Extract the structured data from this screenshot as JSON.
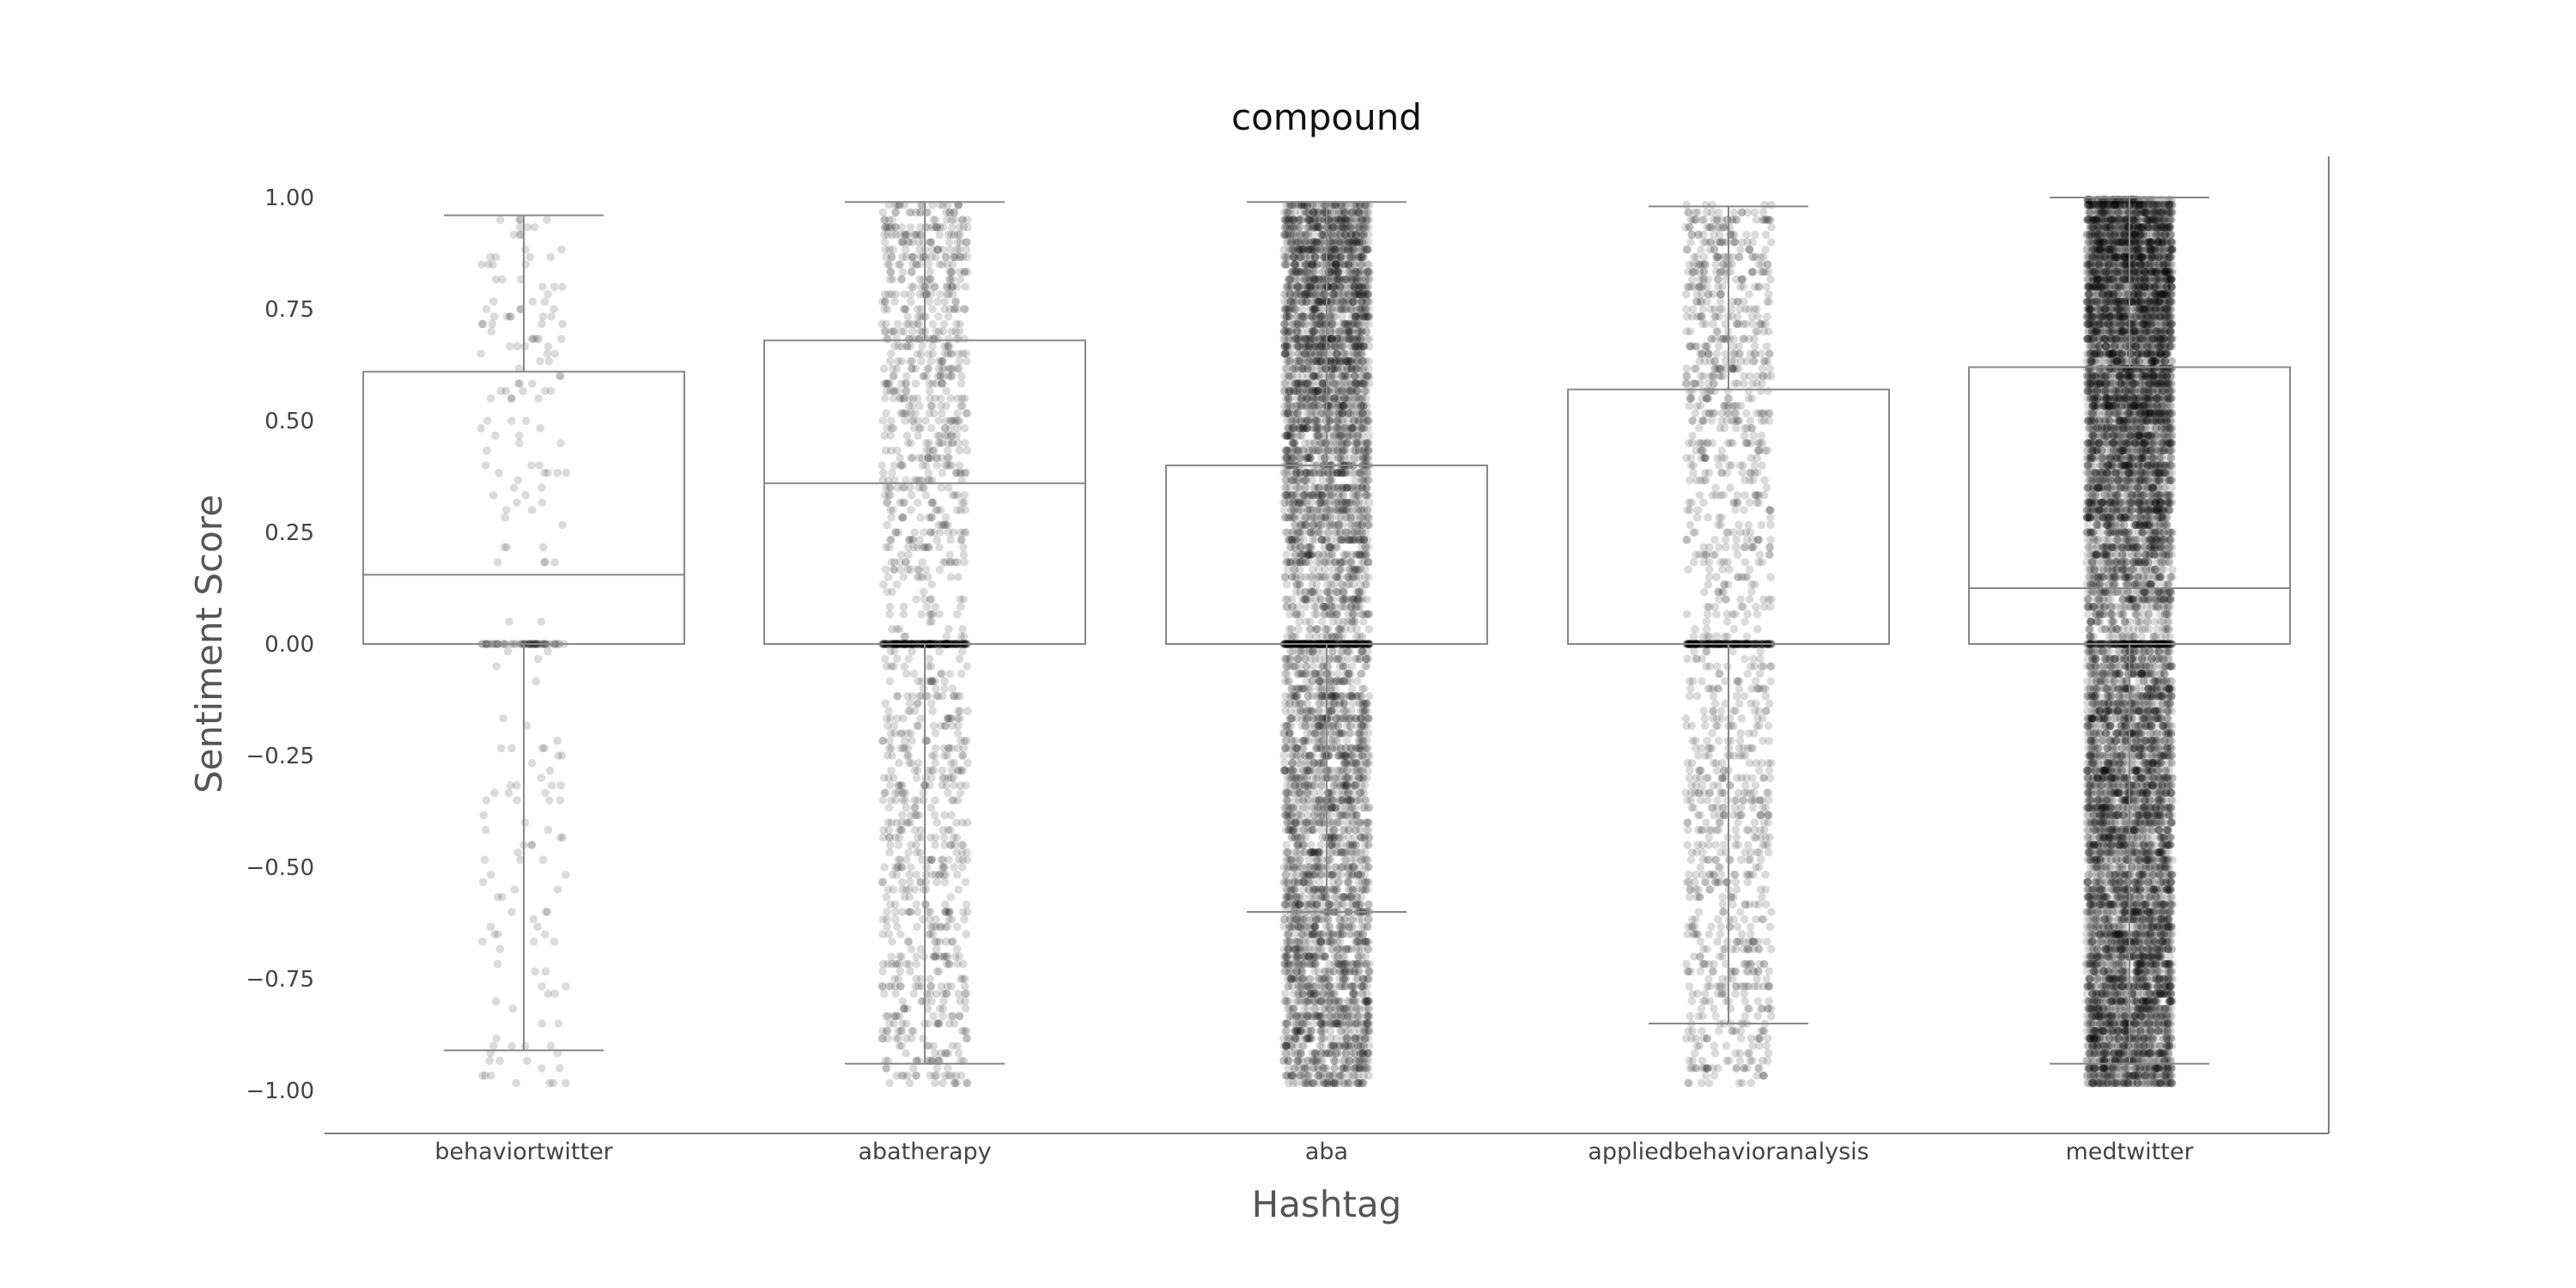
{
  "chart_data": {
    "type": "box",
    "title": "compound",
    "xlabel": "Hashtag",
    "ylabel": "Sentiment Score",
    "ylim": [
      -1.08,
      1.1
    ],
    "yticks": [
      1.0,
      0.75,
      0.5,
      0.25,
      0.0,
      -0.25,
      -0.5,
      -0.75,
      -1.0
    ],
    "ytick_labels": [
      "1.00",
      "0.75",
      "0.50",
      "0.25",
      "0.00",
      "−0.25",
      "−0.50",
      "−0.75",
      "−1.00"
    ],
    "grid": false,
    "categories": [
      "behaviortwitter",
      "abatherapy",
      "aba",
      "appliedbehavioranalysis",
      "medtwitter"
    ],
    "boxes": [
      {
        "category": "behaviortwitter",
        "whisker_low": -0.91,
        "q1": 0.0,
        "median": 0.155,
        "q3": 0.61,
        "whisker_high": 0.96,
        "points_shown": "sparse"
      },
      {
        "category": "abatherapy",
        "whisker_low": -0.94,
        "q1": 0.0,
        "median": 0.36,
        "q3": 0.68,
        "whisker_high": 0.99,
        "points_shown": "medium"
      },
      {
        "category": "aba",
        "whisker_low": -0.6,
        "q1": 0.0,
        "median": 0.0,
        "q3": 0.4,
        "whisker_high": 0.99,
        "points_shown": "dense"
      },
      {
        "category": "appliedbehavioranalysis",
        "whisker_low": -0.85,
        "q1": 0.0,
        "median": 0.0,
        "q3": 0.57,
        "whisker_high": 0.98,
        "points_shown": "medium"
      },
      {
        "category": "medtwitter",
        "whisker_low": -0.94,
        "q1": 0.0,
        "median": 0.125,
        "q3": 0.62,
        "whisker_high": 1.0,
        "points_shown": "very-dense"
      }
    ],
    "point_color": "#000000",
    "box_color": "#888888"
  }
}
